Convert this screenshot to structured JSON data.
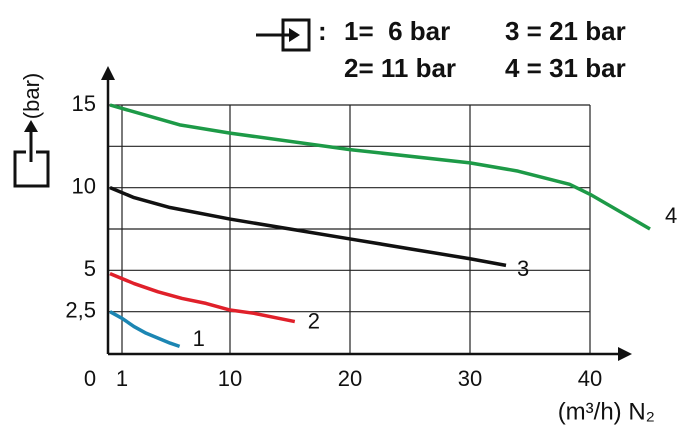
{
  "chart_data": {
    "type": "line",
    "legend_prefix": ":",
    "y_label": "(bar)",
    "x_label": "(m³/h) N₂",
    "xlim": [
      0,
      45
    ],
    "ylim": [
      0,
      15
    ],
    "xticks": [
      0,
      1,
      10,
      20,
      30,
      40
    ],
    "yticks": [
      {
        "value": 2.5,
        "label": "2,5"
      },
      5,
      10,
      15
    ],
    "ygrid": [
      2.5,
      5,
      7.5,
      10,
      12.5,
      15
    ],
    "grid": true,
    "legend": "top-right",
    "series": [
      {
        "name": "1=  6 bar",
        "label": "1",
        "color": "#1c86b3",
        "x": [
          0,
          1,
          2,
          3,
          4,
          5,
          5.8
        ],
        "values": [
          2.5,
          2.1,
          1.6,
          1.2,
          0.9,
          0.6,
          0.4
        ]
      },
      {
        "name": "2= 11 bar",
        "label": "2",
        "color": "#e0202a",
        "x": [
          0,
          2,
          4,
          6,
          8,
          10,
          12,
          15.4
        ],
        "values": [
          4.8,
          4.2,
          3.7,
          3.3,
          3.0,
          2.6,
          2.4,
          1.9
        ]
      },
      {
        "name": "3 = 21 bar",
        "label": "3",
        "color": "#111111",
        "x": [
          0,
          2,
          5,
          10,
          15,
          20,
          25,
          30,
          33
        ],
        "values": [
          10,
          9.4,
          8.8,
          8.1,
          7.5,
          6.9,
          6.3,
          5.7,
          5.3
        ]
      },
      {
        "name": "4 = 31 bar",
        "label": "4",
        "color": "#1d9a47",
        "x": [
          0,
          5.8,
          10,
          20,
          30,
          34,
          38.3,
          40,
          45
        ],
        "values": [
          15,
          13.8,
          13.3,
          12.3,
          11.5,
          11,
          10.2,
          9.6,
          7.5
        ]
      }
    ]
  }
}
